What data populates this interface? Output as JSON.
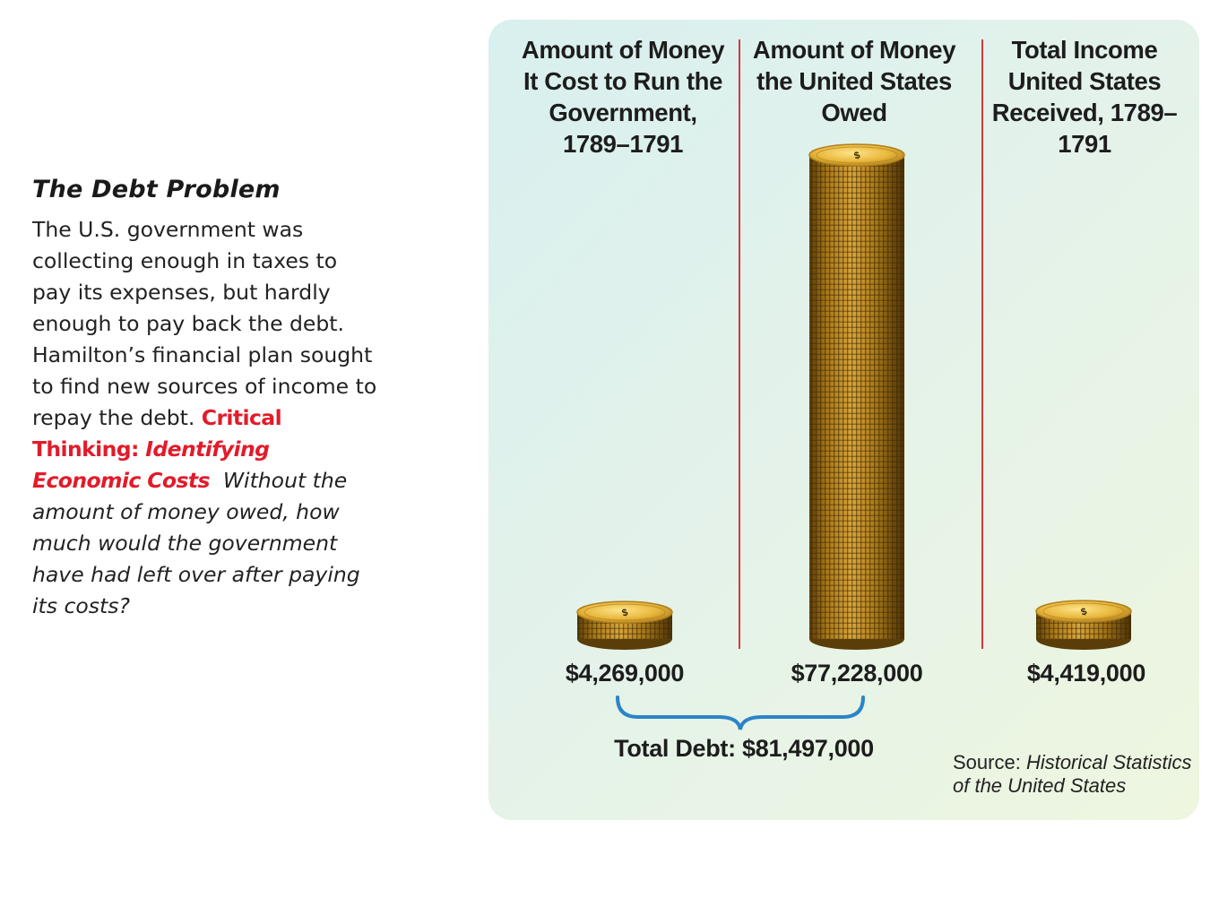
{
  "caption": {
    "title": "The Debt Problem",
    "body": "The U.S. government was collecting enough in taxes to pay its expenses, but hardly enough to pay back the debt. Hamilton’s financial plan sought to find new sources of income to repay the debt.",
    "critical_label": "Critical Thinking:",
    "critical_skill": "Identifying Economic Costs",
    "critical_question": "Without the amount of money owed, how much would the government have had left over after paying its costs?"
  },
  "chart_data": {
    "type": "bar",
    "categories": [
      "Amount of Money It Cost to Run the Government, 1789–1791",
      "Amount of Money the United States Owed",
      "Total Income United States Received, 1789–1791"
    ],
    "values": [
      4269000,
      77228000,
      4419000
    ],
    "value_labels": [
      "$4,269,000",
      "$77,228,000",
      "$4,419,000"
    ],
    "total_label": "Total Debt: $81,497,000",
    "total_value": 81497000,
    "source_prefix": "Source: ",
    "source_title": "Historical Statistics of the United States",
    "colors": {
      "coin_face": "#e9b73c",
      "coin_edge": "#b0801c",
      "coin_shadow": "#5a3d08",
      "divider": "#d33a3a",
      "brace": "#2c84c8"
    }
  }
}
